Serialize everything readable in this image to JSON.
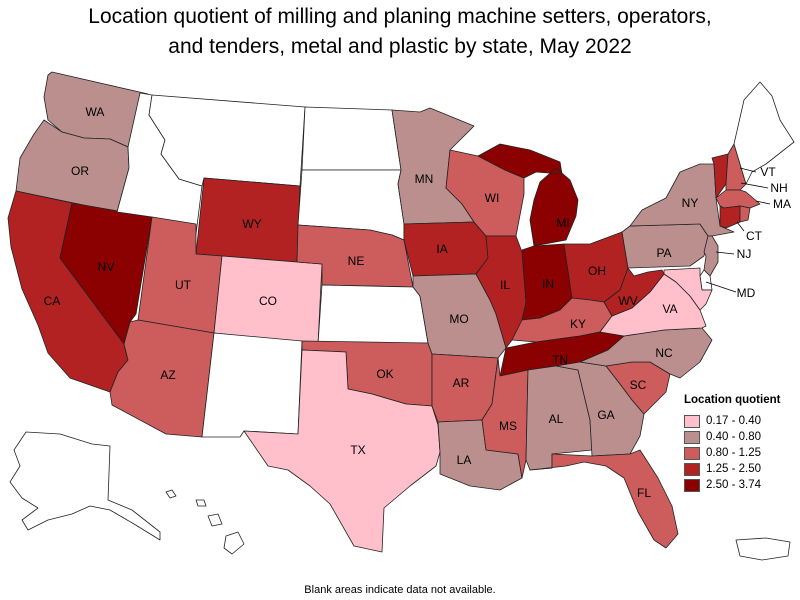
{
  "title_line1": "Location quotient of milling and planing machine setters, operators,",
  "title_line2": "and tenders, metal and plastic by state, May 2022",
  "footnote": "Blank areas indicate data not available.",
  "legend": {
    "title": "Location quotient",
    "items": [
      {
        "label": "0.17 - 0.40",
        "color": "#ffc0cb"
      },
      {
        "label": "0.40 - 0.80",
        "color": "#bc8f8f"
      },
      {
        "label": "0.80 - 1.25",
        "color": "#cd5c5c"
      },
      {
        "label": "1.25 - 2.50",
        "color": "#b22222"
      },
      {
        "label": "2.50 - 3.74",
        "color": "#8b0000"
      }
    ]
  },
  "blank_color": "#ffffff",
  "states": [
    {
      "abbr": "WA",
      "cls": 1
    },
    {
      "abbr": "OR",
      "cls": 1
    },
    {
      "abbr": "CA",
      "cls": 3
    },
    {
      "abbr": "NV",
      "cls": 4
    },
    {
      "abbr": "ID",
      "cls": null
    },
    {
      "abbr": "MT",
      "cls": null
    },
    {
      "abbr": "WY",
      "cls": 3
    },
    {
      "abbr": "UT",
      "cls": 2
    },
    {
      "abbr": "AZ",
      "cls": 2
    },
    {
      "abbr": "CO",
      "cls": 0
    },
    {
      "abbr": "NM",
      "cls": null
    },
    {
      "abbr": "ND",
      "cls": null
    },
    {
      "abbr": "SD",
      "cls": null
    },
    {
      "abbr": "NE",
      "cls": 2
    },
    {
      "abbr": "KS",
      "cls": null
    },
    {
      "abbr": "OK",
      "cls": 2
    },
    {
      "abbr": "TX",
      "cls": 0
    },
    {
      "abbr": "MN",
      "cls": 1
    },
    {
      "abbr": "IA",
      "cls": 3
    },
    {
      "abbr": "MO",
      "cls": 1
    },
    {
      "abbr": "AR",
      "cls": 2
    },
    {
      "abbr": "LA",
      "cls": 1
    },
    {
      "abbr": "WI",
      "cls": 2
    },
    {
      "abbr": "IL",
      "cls": 3
    },
    {
      "abbr": "MI",
      "cls": 4
    },
    {
      "abbr": "IN",
      "cls": 4
    },
    {
      "abbr": "OH",
      "cls": 3
    },
    {
      "abbr": "KY",
      "cls": 2
    },
    {
      "abbr": "TN",
      "cls": 4
    },
    {
      "abbr": "MS",
      "cls": 2
    },
    {
      "abbr": "AL",
      "cls": 1
    },
    {
      "abbr": "GA",
      "cls": 1
    },
    {
      "abbr": "FL",
      "cls": 2
    },
    {
      "abbr": "SC",
      "cls": 2
    },
    {
      "abbr": "NC",
      "cls": 1
    },
    {
      "abbr": "VA",
      "cls": 0
    },
    {
      "abbr": "WV",
      "cls": 3
    },
    {
      "abbr": "PA",
      "cls": 1
    },
    {
      "abbr": "NY",
      "cls": 1
    },
    {
      "abbr": "VT",
      "cls": 3
    },
    {
      "abbr": "NH",
      "cls": 2
    },
    {
      "abbr": "ME",
      "cls": null
    },
    {
      "abbr": "MA",
      "cls": 2
    },
    {
      "abbr": "CT",
      "cls": 3
    },
    {
      "abbr": "RI",
      "cls": 2
    },
    {
      "abbr": "NJ",
      "cls": 1
    },
    {
      "abbr": "DE",
      "cls": null
    },
    {
      "abbr": "MD",
      "cls": 0
    },
    {
      "abbr": "AK",
      "cls": null
    },
    {
      "abbr": "HI",
      "cls": null
    },
    {
      "abbr": "PR",
      "cls": null
    }
  ]
}
